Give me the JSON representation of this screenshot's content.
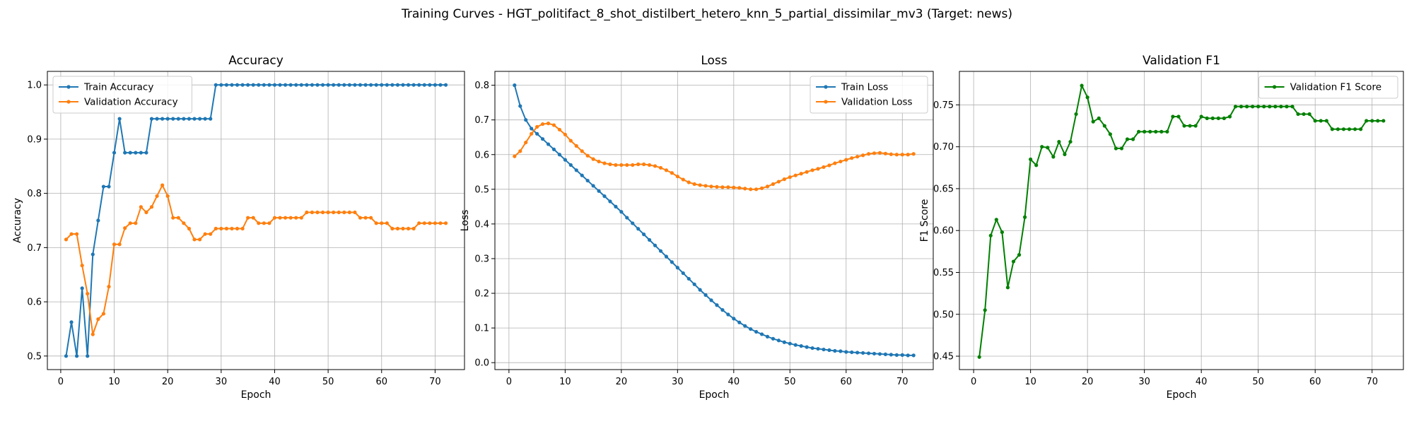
{
  "figure_title": "Training Curves - HGT_politifact_8_shot_distilbert_hetero_knn_5_partial_dissimilar_mv3 (Target: news)",
  "chart_data": [
    {
      "type": "line",
      "title": "Accuracy",
      "xlabel": "Epoch",
      "ylabel": "Accuracy",
      "xlim": [
        -2.5,
        75.5
      ],
      "ylim": [
        0.475,
        1.025
      ],
      "xticks": [
        0,
        10,
        20,
        30,
        40,
        50,
        60,
        70
      ],
      "yticks": [
        0.5,
        0.6,
        0.7,
        0.8,
        0.9,
        1.0
      ],
      "ytick_labels": [
        "0.5",
        "0.6",
        "0.7",
        "0.8",
        "0.9",
        "1.0"
      ],
      "grid": true,
      "legend_position": "top-left",
      "x": [
        1,
        2,
        3,
        4,
        5,
        6,
        7,
        8,
        9,
        10,
        11,
        12,
        13,
        14,
        15,
        16,
        17,
        18,
        19,
        20,
        21,
        22,
        23,
        24,
        25,
        26,
        27,
        28,
        29,
        30,
        31,
        32,
        33,
        34,
        35,
        36,
        37,
        38,
        39,
        40,
        41,
        42,
        43,
        44,
        45,
        46,
        47,
        48,
        49,
        50,
        51,
        52,
        53,
        54,
        55,
        56,
        57,
        58,
        59,
        60,
        61,
        62,
        63,
        64,
        65,
        66,
        67,
        68,
        69,
        70,
        71,
        72
      ],
      "series": [
        {
          "name": "Train Accuracy",
          "color": "#1f77b4",
          "values": [
            0.5,
            0.5625,
            0.5,
            0.625,
            0.5,
            0.6875,
            0.75,
            0.8125,
            0.8125,
            0.875,
            0.9375,
            0.875,
            0.875,
            0.875,
            0.875,
            0.875,
            0.9375,
            0.9375,
            0.9375,
            0.9375,
            0.9375,
            0.9375,
            0.9375,
            0.9375,
            0.9375,
            0.9375,
            0.9375,
            0.9375,
            1,
            1,
            1,
            1,
            1,
            1,
            1,
            1,
            1,
            1,
            1,
            1,
            1,
            1,
            1,
            1,
            1,
            1,
            1,
            1,
            1,
            1,
            1,
            1,
            1,
            1,
            1,
            1,
            1,
            1,
            1,
            1,
            1,
            1,
            1,
            1,
            1,
            1,
            1,
            1,
            1,
            1,
            1,
            1
          ]
        },
        {
          "name": "Validation Accuracy",
          "color": "#ff7f0e",
          "values": [
            0.715,
            0.725,
            0.725,
            0.667,
            0.615,
            0.54,
            0.568,
            0.578,
            0.628,
            0.706,
            0.706,
            0.736,
            0.745,
            0.745,
            0.775,
            0.765,
            0.775,
            0.795,
            0.815,
            0.795,
            0.755,
            0.755,
            0.745,
            0.735,
            0.715,
            0.715,
            0.725,
            0.725,
            0.735,
            0.735,
            0.735,
            0.735,
            0.735,
            0.735,
            0.755,
            0.755,
            0.745,
            0.745,
            0.745,
            0.755,
            0.755,
            0.755,
            0.755,
            0.755,
            0.755,
            0.765,
            0.765,
            0.765,
            0.765,
            0.765,
            0.765,
            0.765,
            0.765,
            0.765,
            0.765,
            0.755,
            0.755,
            0.755,
            0.745,
            0.745,
            0.745,
            0.735,
            0.735,
            0.735,
            0.735,
            0.735,
            0.745,
            0.745,
            0.745,
            0.745,
            0.745,
            0.745
          ]
        }
      ]
    },
    {
      "type": "line",
      "title": "Loss",
      "xlabel": "Epoch",
      "ylabel": "Loss",
      "xlim": [
        -2.5,
        75.5
      ],
      "ylim": [
        -0.02,
        0.84
      ],
      "xticks": [
        0,
        10,
        20,
        30,
        40,
        50,
        60,
        70
      ],
      "yticks": [
        0.0,
        0.1,
        0.2,
        0.3,
        0.4,
        0.5,
        0.6,
        0.7,
        0.8
      ],
      "ytick_labels": [
        "0.0",
        "0.1",
        "0.2",
        "0.3",
        "0.4",
        "0.5",
        "0.6",
        "0.7",
        "0.8"
      ],
      "grid": true,
      "legend_position": "top-right",
      "x": [
        1,
        2,
        3,
        4,
        5,
        6,
        7,
        8,
        9,
        10,
        11,
        12,
        13,
        14,
        15,
        16,
        17,
        18,
        19,
        20,
        21,
        22,
        23,
        24,
        25,
        26,
        27,
        28,
        29,
        30,
        31,
        32,
        33,
        34,
        35,
        36,
        37,
        38,
        39,
        40,
        41,
        42,
        43,
        44,
        45,
        46,
        47,
        48,
        49,
        50,
        51,
        52,
        53,
        54,
        55,
        56,
        57,
        58,
        59,
        60,
        61,
        62,
        63,
        64,
        65,
        66,
        67,
        68,
        69,
        70,
        71,
        72
      ],
      "series": [
        {
          "name": "Train Loss",
          "color": "#1f77b4",
          "values": [
            0.8,
            0.74,
            0.7,
            0.675,
            0.66,
            0.645,
            0.63,
            0.615,
            0.6,
            0.585,
            0.57,
            0.555,
            0.54,
            0.525,
            0.51,
            0.495,
            0.48,
            0.465,
            0.45,
            0.435,
            0.418,
            0.402,
            0.386,
            0.37,
            0.354,
            0.338,
            0.322,
            0.306,
            0.29,
            0.274,
            0.258,
            0.242,
            0.226,
            0.21,
            0.195,
            0.18,
            0.166,
            0.152,
            0.139,
            0.127,
            0.116,
            0.106,
            0.097,
            0.089,
            0.082,
            0.075,
            0.069,
            0.064,
            0.059,
            0.055,
            0.051,
            0.048,
            0.045,
            0.042,
            0.04,
            0.038,
            0.036,
            0.034,
            0.033,
            0.031,
            0.03,
            0.029,
            0.028,
            0.027,
            0.026,
            0.025,
            0.024,
            0.023,
            0.022,
            0.022,
            0.021,
            0.021
          ]
        },
        {
          "name": "Validation Loss",
          "color": "#ff7f0e",
          "values": [
            0.595,
            0.61,
            0.635,
            0.66,
            0.68,
            0.688,
            0.69,
            0.685,
            0.672,
            0.658,
            0.64,
            0.625,
            0.61,
            0.597,
            0.587,
            0.58,
            0.575,
            0.572,
            0.57,
            0.57,
            0.57,
            0.57,
            0.572,
            0.572,
            0.57,
            0.567,
            0.562,
            0.555,
            0.547,
            0.537,
            0.528,
            0.52,
            0.515,
            0.512,
            0.51,
            0.508,
            0.507,
            0.506,
            0.506,
            0.505,
            0.504,
            0.502,
            0.5,
            0.5,
            0.503,
            0.508,
            0.515,
            0.522,
            0.529,
            0.535,
            0.54,
            0.545,
            0.55,
            0.555,
            0.559,
            0.564,
            0.569,
            0.575,
            0.58,
            0.585,
            0.59,
            0.594,
            0.598,
            0.602,
            0.604,
            0.605,
            0.603,
            0.601,
            0.6,
            0.6,
            0.6,
            0.602
          ]
        }
      ]
    },
    {
      "type": "line",
      "title": "Validation F1",
      "xlabel": "Epoch",
      "ylabel": "F1 Score",
      "xlim": [
        -2.5,
        75.5
      ],
      "ylim": [
        0.434,
        0.79
      ],
      "xticks": [
        0,
        10,
        20,
        30,
        40,
        50,
        60,
        70
      ],
      "yticks": [
        0.45,
        0.5,
        0.55,
        0.6,
        0.65,
        0.7,
        0.75
      ],
      "ytick_labels": [
        "0.45",
        "0.50",
        "0.55",
        "0.60",
        "0.65",
        "0.70",
        "0.75"
      ],
      "grid": true,
      "legend_position": "top-right",
      "x": [
        1,
        2,
        3,
        4,
        5,
        6,
        7,
        8,
        9,
        10,
        11,
        12,
        13,
        14,
        15,
        16,
        17,
        18,
        19,
        20,
        21,
        22,
        23,
        24,
        25,
        26,
        27,
        28,
        29,
        30,
        31,
        32,
        33,
        34,
        35,
        36,
        37,
        38,
        39,
        40,
        41,
        42,
        43,
        44,
        45,
        46,
        47,
        48,
        49,
        50,
        51,
        52,
        53,
        54,
        55,
        56,
        57,
        58,
        59,
        60,
        61,
        62,
        63,
        64,
        65,
        66,
        67,
        68,
        69,
        70,
        71,
        72
      ],
      "series": [
        {
          "name": "Validation F1 Score",
          "color": "#008000",
          "values": [
            0.449,
            0.505,
            0.594,
            0.613,
            0.598,
            0.532,
            0.563,
            0.571,
            0.616,
            0.685,
            0.678,
            0.7,
            0.699,
            0.688,
            0.706,
            0.691,
            0.706,
            0.739,
            0.773,
            0.759,
            0.73,
            0.734,
            0.725,
            0.715,
            0.698,
            0.698,
            0.709,
            0.709,
            0.718,
            0.718,
            0.718,
            0.718,
            0.718,
            0.718,
            0.736,
            0.736,
            0.725,
            0.725,
            0.725,
            0.736,
            0.734,
            0.734,
            0.734,
            0.734,
            0.736,
            0.748,
            0.748,
            0.748,
            0.748,
            0.748,
            0.748,
            0.748,
            0.748,
            0.748,
            0.748,
            0.748,
            0.739,
            0.739,
            0.739,
            0.731,
            0.731,
            0.731,
            0.721,
            0.721,
            0.721,
            0.721,
            0.721,
            0.721,
            0.731,
            0.731,
            0.731,
            0.731
          ]
        }
      ]
    }
  ]
}
